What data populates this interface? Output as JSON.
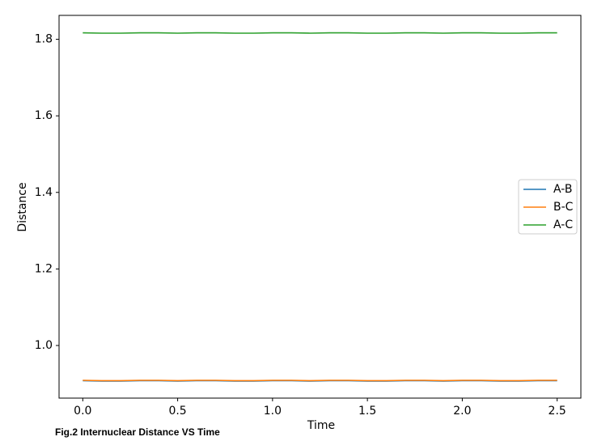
{
  "chart_data": {
    "type": "line",
    "xlabel": "Time",
    "ylabel": "Distance",
    "caption": "Fig.2 Internuclear Distance VS Time",
    "x": [
      0,
      0.1,
      0.2,
      0.3,
      0.4,
      0.5,
      0.6,
      0.7,
      0.8,
      0.9,
      1.0,
      1.1,
      1.2,
      1.3,
      1.4,
      1.5,
      1.6,
      1.7,
      1.8,
      1.9,
      2.0,
      2.1,
      2.2,
      2.3,
      2.4,
      2.5
    ],
    "series": [
      {
        "name": "A-B",
        "color": "#1f77b4",
        "values": [
          0.908,
          0.907,
          0.907,
          0.908,
          0.908,
          0.907,
          0.908,
          0.908,
          0.907,
          0.907,
          0.908,
          0.908,
          0.907,
          0.908,
          0.908,
          0.907,
          0.907,
          0.908,
          0.908,
          0.907,
          0.908,
          0.908,
          0.907,
          0.907,
          0.908,
          0.908
        ]
      },
      {
        "name": "B-C",
        "color": "#ff7f0e",
        "values": [
          0.909,
          0.908,
          0.908,
          0.909,
          0.909,
          0.908,
          0.909,
          0.909,
          0.908,
          0.908,
          0.909,
          0.909,
          0.908,
          0.909,
          0.909,
          0.908,
          0.908,
          0.909,
          0.909,
          0.908,
          0.909,
          0.909,
          0.908,
          0.908,
          0.909,
          0.909
        ]
      },
      {
        "name": "A-C",
        "color": "#2ca02c",
        "values": [
          1.817,
          1.816,
          1.816,
          1.817,
          1.817,
          1.816,
          1.817,
          1.817,
          1.816,
          1.816,
          1.817,
          1.817,
          1.816,
          1.817,
          1.817,
          1.816,
          1.816,
          1.817,
          1.817,
          1.816,
          1.817,
          1.817,
          1.816,
          1.816,
          1.817,
          1.817
        ]
      }
    ],
    "xlim": [
      -0.125,
      2.625
    ],
    "xticks": [
      {
        "value": 0,
        "label": "0.0"
      },
      0.5,
      {
        "value": 1,
        "label": "1.0"
      },
      1.5,
      {
        "value": 2,
        "label": "2.0"
      },
      2.5
    ],
    "ylim": [
      0.8625,
      1.8625
    ],
    "yticks": [
      {
        "value": 1,
        "label": "1.0"
      },
      1.2,
      1.4,
      1.6,
      1.8
    ],
    "grid": false,
    "legend": "center right"
  }
}
